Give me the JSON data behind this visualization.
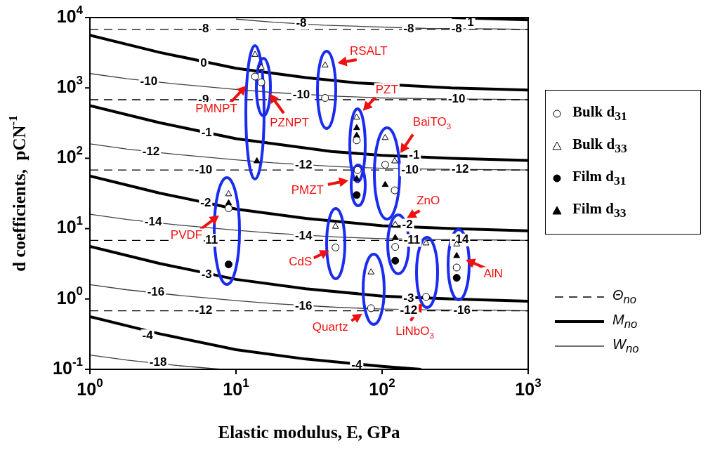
{
  "chart_data": {
    "type": "scatter",
    "xlabel": "Elastic modulus, E, GPa",
    "ylabel": "d coefficients,  pCN$^{-1}$",
    "log": "xy",
    "grid": false,
    "legend": "right",
    "xlim": [
      1,
      1000
    ],
    "xticks": [
      {
        "value": 1,
        "label": "10$^{0}$"
      },
      {
        "value": 10,
        "label": "10$^{1}$"
      },
      {
        "value": 100,
        "label": "10$^{2}$"
      },
      {
        "value": 1000,
        "label": "10$^{3}$"
      }
    ],
    "ylim": [
      0.1,
      10000
    ],
    "yticks": [
      {
        "value": 0.1,
        "label": "10$^{-1}$"
      },
      {
        "value": 1,
        "label": "10$^{0}$"
      },
      {
        "value": 10,
        "label": "10$^{1}$"
      },
      {
        "value": 100,
        "label": "10$^{2}$"
      },
      {
        "value": 1000,
        "label": "10$^{3}$"
      },
      {
        "value": 10000,
        "label": "10$^{4}$"
      }
    ],
    "series": [
      {
        "name": "Bulk d$_{31}$",
        "marker": "circle",
        "color": "#ffffff",
        "x": [
          13.5,
          14.9,
          40.7,
          67,
          68,
          105,
          122,
          123,
          48,
          84,
          200,
          324,
          8.9
        ],
        "values": [
          1450,
          1200,
          720,
          180,
          68,
          81,
          35,
          5.5,
          5.4,
          0.74,
          1.07,
          2.8,
          19.5
        ]
      },
      {
        "name": "Bulk d$_{33}$",
        "marker": "triangle",
        "color": "#ffffff",
        "x": [
          13.5,
          14.9,
          40.7,
          67,
          105,
          122,
          123,
          48,
          84,
          200,
          324,
          8.9
        ],
        "values": [
          2970,
          1950,
          2100,
          380,
          195,
          91,
          11.4,
          10.7,
          2.4,
          6.2,
          6.0,
          31
        ]
      },
      {
        "name": "Film d$_{31}$",
        "marker": "circle",
        "color": "#000000",
        "x": [
          67,
          123,
          324,
          8.9
        ],
        "values": [
          30,
          3.5,
          2.0,
          3.1
        ]
      },
      {
        "name": "Film d$_{33}$",
        "marker": "triangle",
        "color": "#000000",
        "x": [
          13.9,
          67,
          67,
          67,
          105,
          123,
          324,
          8.9
        ],
        "values": [
          91,
          270,
          210,
          51,
          42,
          7.4,
          4.1,
          23
        ]
      },
      {
        "name": "Θ$_{no}$",
        "type": "line",
        "line_style": "dashed",
        "marker": "none",
        "color": "#000000",
        "x": [
          1,
          1000
        ],
        "values": [
          6800,
          6800
        ]
      },
      {
        "type": "line",
        "line_style": "dashed",
        "marker": "none",
        "color": "#000000",
        "x": [
          1,
          1000
        ],
        "values": [
          680,
          680
        ]
      },
      {
        "type": "line",
        "line_style": "dashed",
        "marker": "none",
        "color": "#000000",
        "x": [
          1,
          1000
        ],
        "values": [
          68,
          68
        ]
      },
      {
        "type": "line",
        "line_style": "dashed",
        "marker": "none",
        "color": "#000000",
        "x": [
          1,
          1000
        ],
        "values": [
          6.8,
          6.8
        ]
      },
      {
        "type": "line",
        "line_style": "dashed",
        "marker": "none",
        "color": "#000000",
        "x": [
          1,
          1000
        ],
        "values": [
          0.68,
          0.68
        ]
      },
      {
        "name": "M$_{no}$",
        "type": "line",
        "line_style": "solid",
        "marker": "none",
        "color": "#000000",
        "x": [
          1,
          3,
          10,
          30,
          70,
          300,
          1000
        ],
        "values": [
          5600,
          3200,
          1900,
          1400,
          1170,
          1000,
          930
        ]
      },
      {
        "type": "line",
        "line_style": "solid",
        "marker": "none",
        "color": "#000000",
        "x": [
          300,
          1000
        ],
        "values": [
          10000,
          9300
        ]
      },
      {
        "type": "line",
        "line_style": "solid",
        "marker": "none",
        "color": "#000000",
        "x": [
          1,
          3,
          10,
          45,
          100,
          300,
          1000
        ],
        "values": [
          560,
          320,
          190,
          125,
          110,
          100,
          93
        ]
      },
      {
        "type": "line",
        "line_style": "solid",
        "marker": "none",
        "color": "#000000",
        "x": [
          1,
          3,
          10,
          30,
          100,
          300,
          1000
        ],
        "values": [
          56,
          32,
          19,
          14,
          11,
          10,
          9.3
        ]
      },
      {
        "type": "line",
        "line_style": "solid",
        "marker": "none",
        "color": "#000000",
        "x": [
          1,
          3,
          10,
          30,
          100,
          300,
          1000
        ],
        "values": [
          5.6,
          3.2,
          1.9,
          1.4,
          1.1,
          1.0,
          0.93
        ]
      },
      {
        "type": "line",
        "line_style": "solid",
        "marker": "none",
        "color": "#000000",
        "x": [
          1,
          3,
          10,
          30,
          100,
          185
        ],
        "values": [
          0.56,
          0.32,
          0.19,
          0.14,
          0.11,
          0.1
        ]
      },
      {
        "name": "W$_{no}$",
        "type": "line",
        "line_style": "solid",
        "marker": "none",
        "color": "#404040",
        "x": [
          1,
          1.8,
          4,
          10,
          18,
          50,
          100,
          220,
          600,
          1000
        ],
        "values": [
          1600,
          1350,
          1130,
          950,
          860,
          760,
          720,
          700,
          690,
          680
        ]
      },
      {
        "type": "line",
        "line_style": "solid",
        "marker": "none",
        "color": "#404040",
        "x": [
          10,
          18,
          40,
          200,
          600,
          1000
        ],
        "values": [
          9500,
          8600,
          7800,
          7000,
          6900,
          6800
        ]
      },
      {
        "type": "line",
        "line_style": "solid",
        "marker": "none",
        "color": "#404040",
        "x": [
          1,
          1.8,
          4,
          10,
          18,
          50,
          100,
          220,
          600,
          1000
        ],
        "values": [
          160,
          135,
          113,
          95,
          86,
          76,
          72,
          70,
          69,
          68
        ]
      },
      {
        "type": "line",
        "line_style": "solid",
        "marker": "none",
        "color": "#404040",
        "x": [
          1,
          1.8,
          4,
          10,
          18,
          50,
          100,
          220,
          600,
          1000
        ],
        "values": [
          16,
          13.5,
          11.3,
          9.5,
          8.6,
          7.6,
          7.2,
          7.0,
          6.9,
          6.8
        ]
      },
      {
        "type": "line",
        "line_style": "solid",
        "marker": "none",
        "color": "#404040",
        "x": [
          1,
          1.8,
          4,
          10,
          18,
          50,
          100,
          220,
          600,
          1000
        ],
        "values": [
          1.6,
          1.35,
          1.13,
          0.95,
          0.86,
          0.76,
          0.72,
          0.7,
          0.69,
          0.68
        ]
      },
      {
        "type": "line",
        "line_style": "solid",
        "marker": "none",
        "color": "#404040",
        "x": [
          1,
          1.8,
          4,
          8
        ],
        "values": [
          0.16,
          0.135,
          0.113,
          0.1
        ]
      }
    ],
    "annotations": [
      {
        "text": "RSALT",
        "x": 40.7,
        "y": 2100
      },
      {
        "text": "PMNPT",
        "x": 13.5,
        "y": 1450
      },
      {
        "text": "PZNPT",
        "x": 14.9,
        "y": 1200
      },
      {
        "text": "PZT",
        "x": 67,
        "y": 380
      },
      {
        "text": "BaiTO$_{3}$",
        "x": 122,
        "y": 91
      },
      {
        "text": "PMZT",
        "x": 67,
        "y": 51
      },
      {
        "text": "ZnO",
        "x": 123,
        "y": 11.4
      },
      {
        "text": "CdS",
        "x": 48,
        "y": 5.4
      },
      {
        "text": "Quartz",
        "x": 84,
        "y": 0.74
      },
      {
        "text": "LiNbO$_{3}$",
        "x": 200,
        "y": 1.07
      },
      {
        "text": "AlN",
        "x": 324,
        "y": 4.1
      },
      {
        "text": "PVDF",
        "x": 8.9,
        "y": 19.5
      },
      {
        "text": "-8",
        "x": 6.0,
        "y": 6800
      },
      {
        "text": "-8",
        "x": 28,
        "y": 8300
      },
      {
        "text": "-8",
        "x": 152,
        "y": 6800
      },
      {
        "text": "-8",
        "x": 324,
        "y": 6800
      },
      {
        "text": "1",
        "x": 403,
        "y": 8500
      },
      {
        "text": "0",
        "x": 6.0,
        "y": 2250
      },
      {
        "text": "-10",
        "x": 2.53,
        "y": 1240
      },
      {
        "text": "-10",
        "x": 28,
        "y": 790
      },
      {
        "text": "-10",
        "x": 324,
        "y": 690
      },
      {
        "text": "-9",
        "x": 6.0,
        "y": 680
      },
      {
        "text": "-1",
        "x": 6.3,
        "y": 227
      },
      {
        "text": "-12",
        "x": 2.62,
        "y": 124
      },
      {
        "text": "-1",
        "x": 166,
        "y": 109
      },
      {
        "text": "-10",
        "x": 6.0,
        "y": 68
      },
      {
        "text": "-12",
        "x": 29,
        "y": 79
      },
      {
        "text": "-10",
        "x": 155,
        "y": 68
      },
      {
        "text": "-12",
        "x": 342,
        "y": 69
      },
      {
        "text": "-2",
        "x": 6.2,
        "y": 23
      },
      {
        "text": "-14",
        "x": 2.71,
        "y": 12.4
      },
      {
        "text": "-2",
        "x": 149,
        "y": 11.2
      },
      {
        "text": "-11",
        "x": 6.6,
        "y": 6.8
      },
      {
        "text": "-14",
        "x": 29,
        "y": 7.9
      },
      {
        "text": "-11",
        "x": 160,
        "y": 6.8
      },
      {
        "text": "-14",
        "x": 342,
        "y": 6.9
      },
      {
        "text": "-3",
        "x": 6.3,
        "y": 2.2
      },
      {
        "text": "-16",
        "x": 2.83,
        "y": 1.24
      },
      {
        "text": "-3",
        "x": 152,
        "y": 1.02
      },
      {
        "text": "-12",
        "x": 6.0,
        "y": 0.68
      },
      {
        "text": "-16",
        "x": 29,
        "y": 0.79
      },
      {
        "text": "-12",
        "x": 152,
        "y": 0.68
      },
      {
        "text": "-16",
        "x": 352,
        "y": 0.69
      },
      {
        "text": "-4",
        "x": 2.48,
        "y": 0.3
      },
      {
        "text": "-4",
        "x": 67,
        "y": 0.115
      },
      {
        "text": "-18",
        "x": 2.93,
        "y": 0.124
      }
    ]
  }
}
